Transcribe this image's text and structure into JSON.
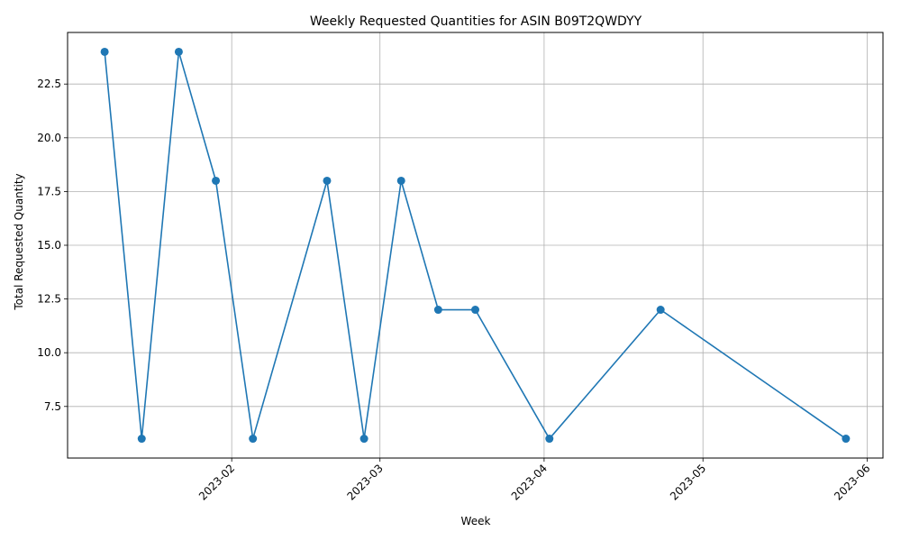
{
  "chart_data": {
    "type": "line",
    "title": "Weekly Requested Quantities for ASIN B09T2QWDYY",
    "xlabel": "Week",
    "ylabel": "Total Requested Quantity",
    "x": [
      "2023-01-08",
      "2023-01-15",
      "2023-01-22",
      "2023-01-29",
      "2023-02-05",
      "2023-02-19",
      "2023-02-26",
      "2023-03-05",
      "2023-03-12",
      "2023-03-19",
      "2023-04-02",
      "2023-04-23",
      "2023-05-28"
    ],
    "series": [
      {
        "values": [
          24,
          6,
          24,
          18,
          6,
          18,
          6,
          18,
          12,
          12,
          6,
          12,
          6
        ],
        "color": "#1f77b4"
      }
    ],
    "xlim": [
      "2023-01-01",
      "2023-06-04"
    ],
    "ylim": [
      5.1,
      24.9
    ],
    "x_ticks": [
      "2023-02-01",
      "2023-03-01",
      "2023-04-01",
      "2023-05-01",
      "2023-06-01"
    ],
    "x_tick_labels": [
      "2023-02",
      "2023-03",
      "2023-04",
      "2023-05",
      "2023-06"
    ],
    "y_ticks": [
      7.5,
      10.0,
      12.5,
      15.0,
      17.5,
      20.0,
      22.5
    ],
    "y_tick_labels": [
      "7.5",
      "10.0",
      "12.5",
      "15.0",
      "17.5",
      "20.0",
      "22.5"
    ],
    "grid": true,
    "marker": "circle"
  }
}
